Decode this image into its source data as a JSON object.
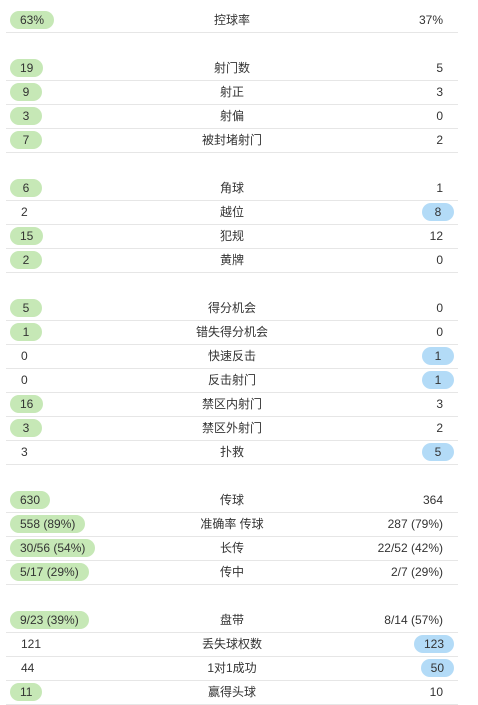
{
  "colors": {
    "home_highlight": "#c6e8b6",
    "away_highlight": "#b3dbf7",
    "divider": "#e6e6e6",
    "text": "#333333"
  },
  "groups": [
    {
      "rows": [
        {
          "label": "控球率",
          "home": "63%",
          "away": "37%",
          "winner": "home"
        }
      ]
    },
    {
      "rows": [
        {
          "label": "射门数",
          "home": "19",
          "away": "5",
          "winner": "home"
        },
        {
          "label": "射正",
          "home": "9",
          "away": "3",
          "winner": "home"
        },
        {
          "label": "射偏",
          "home": "3",
          "away": "0",
          "winner": "home"
        },
        {
          "label": "被封堵射门",
          "home": "7",
          "away": "2",
          "winner": "home"
        }
      ]
    },
    {
      "rows": [
        {
          "label": "角球",
          "home": "6",
          "away": "1",
          "winner": "home"
        },
        {
          "label": "越位",
          "home": "2",
          "away": "8",
          "winner": "away"
        },
        {
          "label": "犯规",
          "home": "15",
          "away": "12",
          "winner": "home"
        },
        {
          "label": "黄牌",
          "home": "2",
          "away": "0",
          "winner": "home"
        }
      ]
    },
    {
      "rows": [
        {
          "label": "得分机会",
          "home": "5",
          "away": "0",
          "winner": "home"
        },
        {
          "label": "错失得分机会",
          "home": "1",
          "away": "0",
          "winner": "home"
        },
        {
          "label": "快速反击",
          "home": "0",
          "away": "1",
          "winner": "away"
        },
        {
          "label": "反击射门",
          "home": "0",
          "away": "1",
          "winner": "away"
        },
        {
          "label": "禁区内射门",
          "home": "16",
          "away": "3",
          "winner": "home"
        },
        {
          "label": "禁区外射门",
          "home": "3",
          "away": "2",
          "winner": "home"
        },
        {
          "label": "扑救",
          "home": "3",
          "away": "5",
          "winner": "away"
        }
      ]
    },
    {
      "rows": [
        {
          "label": "传球",
          "home": "630",
          "away": "364",
          "winner": "home"
        },
        {
          "label": "准确率 传球",
          "home": "558 (89%)",
          "away": "287 (79%)",
          "winner": "home"
        },
        {
          "label": "长传",
          "home": "30/56 (54%)",
          "away": "22/52 (42%)",
          "winner": "home"
        },
        {
          "label": "传中",
          "home": "5/17 (29%)",
          "away": "2/7 (29%)",
          "winner": "home"
        }
      ]
    },
    {
      "rows": [
        {
          "label": "盘带",
          "home": "9/23 (39%)",
          "away": "8/14 (57%)",
          "winner": "home"
        },
        {
          "label": "丢失球权数",
          "home": "121",
          "away": "123",
          "winner": "away"
        },
        {
          "label": "1对1成功",
          "home": "44",
          "away": "50",
          "winner": "away"
        },
        {
          "label": "赢得头球",
          "home": "11",
          "away": "10",
          "winner": "home"
        }
      ]
    }
  ]
}
